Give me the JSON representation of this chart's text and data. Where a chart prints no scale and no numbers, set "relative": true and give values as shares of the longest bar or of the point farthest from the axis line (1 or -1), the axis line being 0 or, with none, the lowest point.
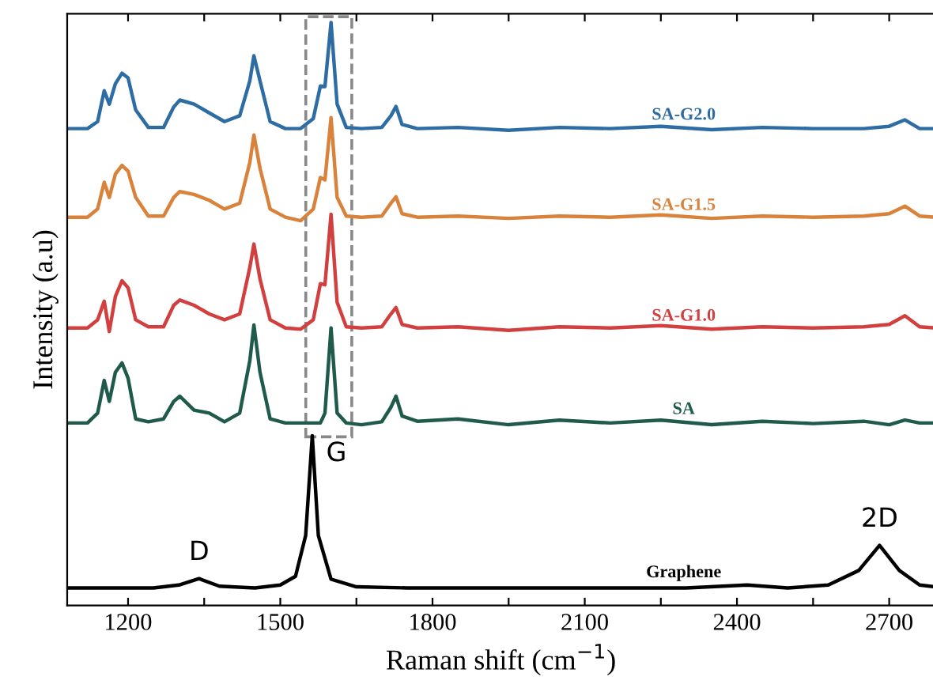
{
  "chart_data": {
    "type": "line",
    "relative": true,
    "xlabel": "Raman shift (cm$^{−1}$)",
    "ylabel": "Intensity (a.u)",
    "x": [
      1082,
      1120,
      1140,
      1153,
      1163,
      1175,
      1188,
      1200,
      1215,
      1240,
      1270,
      1290,
      1302,
      1330,
      1360,
      1390,
      1420,
      1440,
      1448,
      1460,
      1480,
      1510,
      1540,
      1565,
      1579,
      1588,
      1600,
      1612,
      1630,
      1660,
      1700,
      1718,
      1728,
      1740,
      1770,
      1850,
      1950,
      2050,
      2150,
      2250,
      2350,
      2450,
      2550,
      2650,
      2700,
      2731,
      2760,
      2790
    ],
    "xlim": [
      1080,
      2790
    ],
    "xticks": [
      1200,
      {
        "value": 1350,
        "label": null
      },
      1500,
      {
        "value": 1650,
        "label": null
      },
      1800,
      {
        "value": 1950,
        "label": null
      },
      2100,
      {
        "value": 2250,
        "label": null
      },
      2400,
      {
        "value": 2550,
        "label": null
      },
      2700
    ],
    "series": [
      {
        "name": "SA-G2.0",
        "color": "#2e6da4",
        "values": [
          0.818,
          0.818,
          0.83,
          0.883,
          0.86,
          0.895,
          0.913,
          0.905,
          0.85,
          0.82,
          0.82,
          0.855,
          0.867,
          0.86,
          0.845,
          0.83,
          0.84,
          0.9,
          0.943,
          0.9,
          0.83,
          0.818,
          0.818,
          0.835,
          0.891,
          0.89,
          1.0,
          0.86,
          0.82,
          0.818,
          0.82,
          0.84,
          0.856,
          0.825,
          0.818,
          0.82,
          0.815,
          0.82,
          0.818,
          0.822,
          0.816,
          0.82,
          0.818,
          0.818,
          0.822,
          0.833,
          0.818,
          0.818
        ]
      },
      {
        "name": "SA-G1.5",
        "color": "#d9823b",
        "values": [
          0.666,
          0.666,
          0.68,
          0.726,
          0.7,
          0.74,
          0.755,
          0.745,
          0.7,
          0.668,
          0.668,
          0.7,
          0.71,
          0.705,
          0.695,
          0.68,
          0.69,
          0.76,
          0.807,
          0.75,
          0.68,
          0.666,
          0.66,
          0.68,
          0.734,
          0.73,
          0.837,
          0.7,
          0.668,
          0.666,
          0.668,
          0.69,
          0.701,
          0.672,
          0.666,
          0.668,
          0.664,
          0.668,
          0.666,
          0.67,
          0.664,
          0.668,
          0.666,
          0.668,
          0.672,
          0.685,
          0.668,
          0.666
        ]
      },
      {
        "name": "SA-G1.0",
        "color": "#d23f3f",
        "values": [
          0.476,
          0.476,
          0.49,
          0.522,
          0.47,
          0.53,
          0.557,
          0.545,
          0.49,
          0.478,
          0.478,
          0.515,
          0.524,
          0.515,
          0.5,
          0.49,
          0.5,
          0.58,
          0.62,
          0.56,
          0.49,
          0.476,
          0.474,
          0.49,
          0.552,
          0.55,
          0.671,
          0.52,
          0.478,
          0.476,
          0.478,
          0.5,
          0.511,
          0.482,
          0.476,
          0.478,
          0.472,
          0.478,
          0.476,
          0.48,
          0.474,
          0.478,
          0.476,
          0.478,
          0.482,
          0.497,
          0.478,
          0.476
        ]
      },
      {
        "name": "SA",
        "color": "#1f5a4a",
        "values": [
          0.313,
          0.313,
          0.33,
          0.386,
          0.35,
          0.4,
          0.416,
          0.39,
          0.32,
          0.315,
          0.32,
          0.35,
          0.359,
          0.335,
          0.33,
          0.315,
          0.33,
          0.42,
          0.481,
          0.4,
          0.32,
          0.313,
          0.313,
          0.313,
          0.313,
          0.33,
          0.476,
          0.33,
          0.313,
          0.31,
          0.315,
          0.34,
          0.359,
          0.325,
          0.316,
          0.32,
          0.31,
          0.318,
          0.313,
          0.318,
          0.31,
          0.316,
          0.312,
          0.316,
          0.31,
          0.318,
          0.313,
          0.313
        ]
      },
      {
        "name": "Graphene",
        "color": "#000000",
        "x": [
          1082,
          1250,
          1300,
          1340,
          1380,
          1450,
          1500,
          1530,
          1550,
          1563,
          1575,
          1600,
          1650,
          1750,
          2000,
          2300,
          2420,
          2500,
          2580,
          2640,
          2681,
          2720,
          2760,
          2790
        ],
        "values": [
          0.03,
          0.03,
          0.035,
          0.046,
          0.033,
          0.03,
          0.035,
          0.05,
          0.12,
          0.291,
          0.12,
          0.045,
          0.032,
          0.03,
          0.03,
          0.03,
          0.035,
          0.03,
          0.035,
          0.06,
          0.103,
          0.06,
          0.035,
          0.032
        ]
      }
    ],
    "annotations": [
      {
        "text": "D",
        "x": 1340,
        "y": 0.046
      },
      {
        "text": "G",
        "x": 1563,
        "y": 0.291
      },
      {
        "text": "2D",
        "x": 2681,
        "y": 0.103
      }
    ],
    "grid": false,
    "legend": false,
    "marker": "none",
    "line_style": "solid"
  }
}
